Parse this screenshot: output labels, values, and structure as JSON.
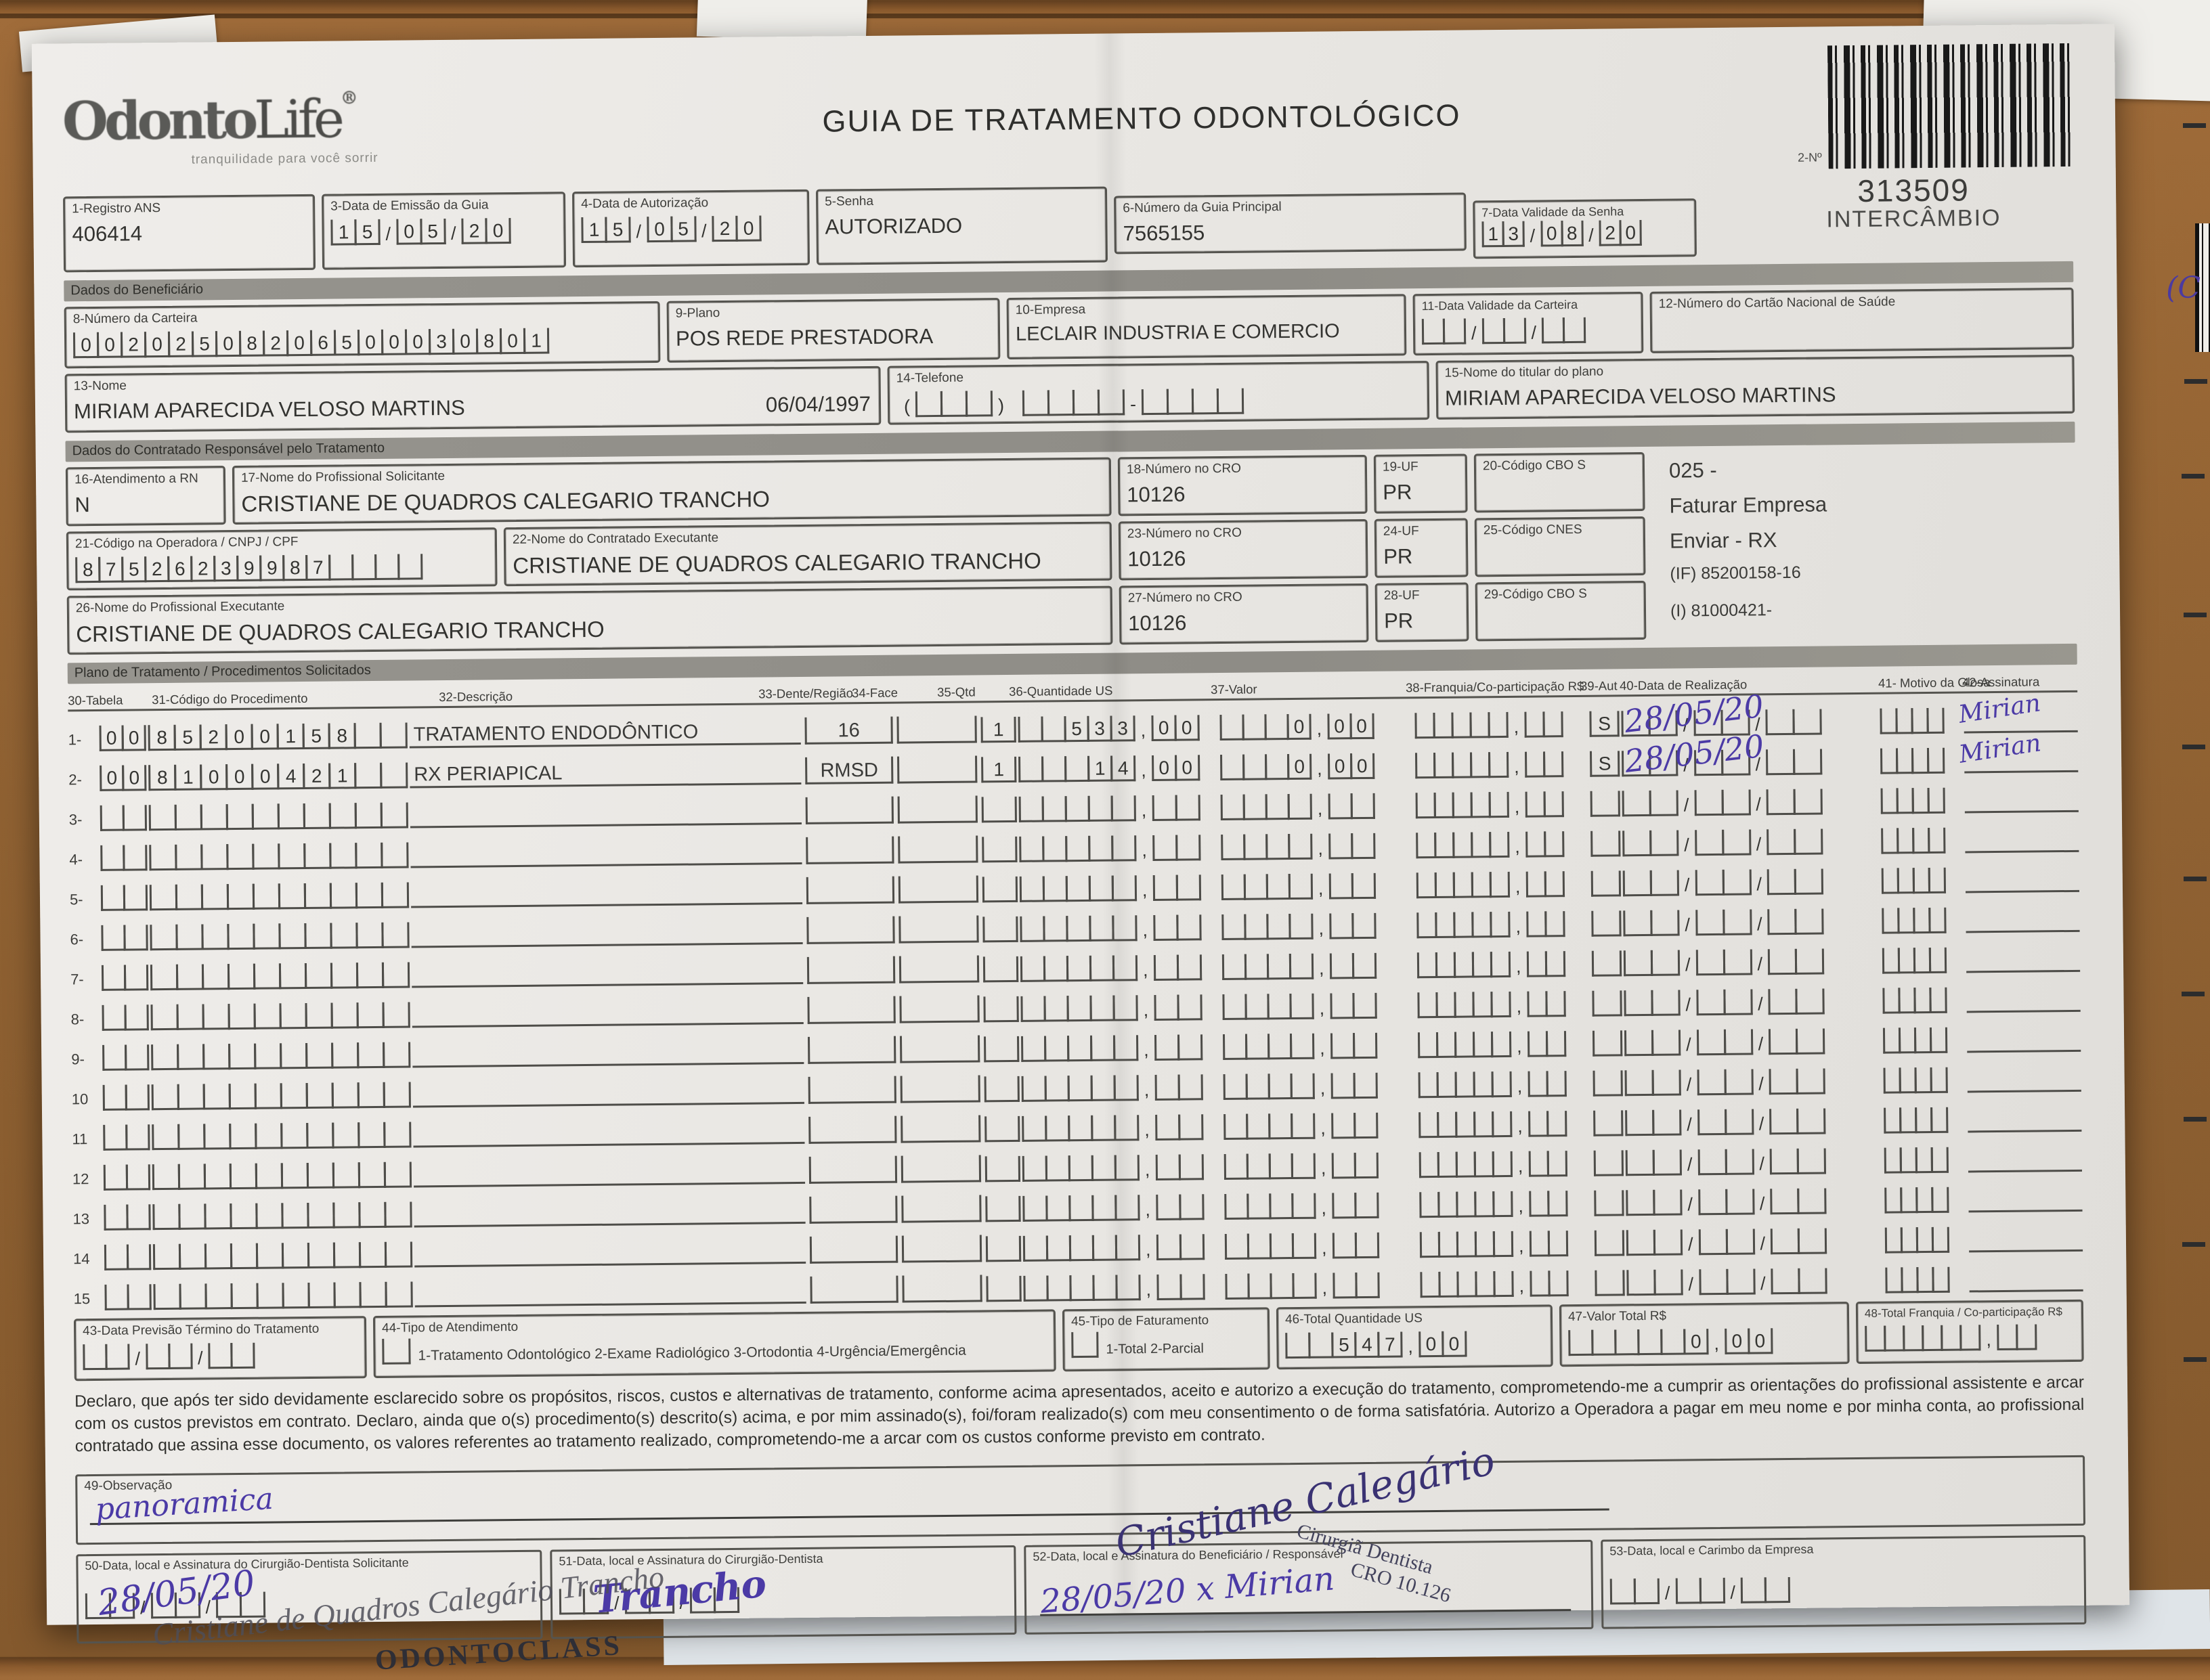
{
  "logo": {
    "text": "Odonto",
    "life": "Life",
    "reg": "®",
    "tagline": "tranquilidade para você sorrir"
  },
  "header": {
    "title": "GUIA DE TRATAMENTO ODONTOLÓGICO",
    "barcode_no_label": "2-Nº",
    "barcode_number": "313509",
    "barcode_caption": "INTERCÂMBIO"
  },
  "sections": {
    "beneficiario": "Dados do Beneficiário",
    "contratado": "Dados do Contratado Responsável pelo Tratamento",
    "plano": "Plano de Tratamento / Procedimentos Solicitados"
  },
  "fields": {
    "f1": {
      "label": "1-Registro ANS",
      "value": "406414"
    },
    "f3": {
      "label": "3-Data de Emissão da Guia",
      "value": "150520"
    },
    "f4": {
      "label": "4-Data de Autorização",
      "value": "150520"
    },
    "f5": {
      "label": "5-Senha",
      "value": "AUTORIZADO"
    },
    "f6": {
      "label": "6-Número da Guia Principal",
      "value": "7565155"
    },
    "f7": {
      "label": "7-Data Validade da Senha",
      "value": "130820"
    },
    "f8": {
      "label": "8-Número da Carteira",
      "value": "00202508206500030801"
    },
    "f9": {
      "label": "9-Plano",
      "value": "POS REDE PRESTADORA"
    },
    "f10": {
      "label": "10-Empresa",
      "value": "LECLAIR INDUSTRIA E COMERCIO"
    },
    "f11": {
      "label": "11-Data Validade da Carteira",
      "value": ""
    },
    "f12": {
      "label": "12-Número do Cartão Nacional de Saúde",
      "value": ""
    },
    "f13": {
      "label": "13-Nome",
      "value": "MIRIAM APARECIDA VELOSO MARTINS",
      "birthdate": "06/04/1997"
    },
    "f14": {
      "label": "14-Telefone",
      "value": ""
    },
    "f15": {
      "label": "15-Nome do titular do plano",
      "value": "MIRIAM APARECIDA VELOSO MARTINS"
    },
    "f16": {
      "label": "16-Atendimento a RN",
      "value": "N"
    },
    "f17": {
      "label": "17-Nome do Profissional Solicitante",
      "value": "CRISTIANE DE QUADROS CALEGARIO TRANCHO"
    },
    "f18": {
      "label": "18-Número no CRO",
      "value": "10126"
    },
    "f19": {
      "label": "19-UF",
      "value": "PR"
    },
    "f20": {
      "label": "20-Código CBO S",
      "value": ""
    },
    "f21": {
      "label": "21-Código na Operadora / CNPJ / CPF",
      "value": "87526239987"
    },
    "f22": {
      "label": "22-Nome do Contratado Executante",
      "value": "CRISTIANE DE QUADROS CALEGARIO TRANCHO"
    },
    "f23": {
      "label": "23-Número no CRO",
      "value": "10126"
    },
    "f24": {
      "label": "24-UF",
      "value": "PR"
    },
    "f25": {
      "label": "25-Código CNES",
      "value": ""
    },
    "f26": {
      "label": "26-Nome do Profissional Executante",
      "value": "CRISTIANE DE QUADROS CALEGARIO TRANCHO"
    },
    "f27": {
      "label": "27-Número no CRO",
      "value": "10126"
    },
    "f28": {
      "label": "28-UF",
      "value": "PR"
    },
    "f29": {
      "label": "29-Código CBO S",
      "value": ""
    },
    "f43": {
      "label": "43-Data Previsão Término do Tratamento",
      "value": ""
    },
    "f44": {
      "label": "44-Tipo de Atendimento",
      "value": "",
      "options": "1-Tratamento Odontológico  2-Exame Radiológico  3-Ortodontia  4-Urgência/Emergência"
    },
    "f45": {
      "label": "45-Tipo de Faturamento",
      "value": "",
      "options": "1-Total  2-Parcial"
    },
    "f46": {
      "label": "46-Total Quantidade US",
      "value": "  54700"
    },
    "f47": {
      "label": "47-Valor Total R$",
      "value": "     000"
    },
    "f48": {
      "label": "48-Total Franquia / Co-participação R$",
      "value": ""
    },
    "f49": {
      "label": "49-Observação"
    },
    "f50": {
      "label": "50-Data, local e Assinatura do Cirurgião-Dentista Solicitante",
      "value": ""
    },
    "f51": {
      "label": "51-Data, local e Assinatura do Cirurgião-Dentista",
      "value": ""
    },
    "f52": {
      "label": "52-Data, local e Assinatura do Beneficiário / Responsável"
    },
    "f53": {
      "label": "53-Data, local e Carimbo da Empresa",
      "value": ""
    }
  },
  "info_lines": {
    "l1": "025 -",
    "l2": "Faturar Empresa",
    "l3": "Enviar - RX",
    "l4": "(IF) 85200158-16",
    "l5": "(I) 81000421-"
  },
  "table": {
    "headers": {
      "h30": "30-Tabela",
      "h31": "31-Código do Procedimento",
      "h32": "32-Descrição",
      "h33": "33-Dente/Região",
      "h34": "34-Face",
      "h35": "35-Qtd",
      "h36": "36-Quantidade US",
      "h37": "37-Valor",
      "h38": "38-Franquia/Co-participação R$",
      "h39": "39-Aut",
      "h40": "40-Data de Realização",
      "h41": "41- Motivo da Glosa",
      "h42": "42-Assinatura"
    },
    "rows": [
      {
        "num": "1-",
        "tabela": "00",
        "codigo": "85200158",
        "desc": "TRATAMENTO ENDODÔNTICO",
        "dente": "16",
        "face": "",
        "qtd": "1",
        "qty_us": "  53300",
        "valor": "   000",
        "franquia": "",
        "aut": "S",
        "data_hand": "28/05/20",
        "assin_hand": "Mirian"
      },
      {
        "num": "2-",
        "tabela": "00",
        "codigo": "81000421",
        "desc": "RX PERIAPICAL",
        "dente": "RMSD",
        "face": "",
        "qtd": "1",
        "qty_us": "   1400",
        "valor": "   000",
        "franquia": "",
        "aut": "S",
        "data_hand": "28/05/20",
        "assin_hand": "Mirian"
      },
      {
        "num": "3-",
        "tabela": "",
        "codigo": "",
        "desc": "",
        "dente": "",
        "face": "",
        "qtd": "",
        "qty_us": "",
        "valor": "",
        "franquia": "",
        "aut": "",
        "data_hand": "",
        "assin_hand": ""
      },
      {
        "num": "4-",
        "tabela": "",
        "codigo": "",
        "desc": "",
        "dente": "",
        "face": "",
        "qtd": "",
        "qty_us": "",
        "valor": "",
        "franquia": "",
        "aut": "",
        "data_hand": "",
        "assin_hand": ""
      },
      {
        "num": "5-",
        "tabela": "",
        "codigo": "",
        "desc": "",
        "dente": "",
        "face": "",
        "qtd": "",
        "qty_us": "",
        "valor": "",
        "franquia": "",
        "aut": "",
        "data_hand": "",
        "assin_hand": ""
      },
      {
        "num": "6-",
        "tabela": "",
        "codigo": "",
        "desc": "",
        "dente": "",
        "face": "",
        "qtd": "",
        "qty_us": "",
        "valor": "",
        "franquia": "",
        "aut": "",
        "data_hand": "",
        "assin_hand": ""
      },
      {
        "num": "7-",
        "tabela": "",
        "codigo": "",
        "desc": "",
        "dente": "",
        "face": "",
        "qtd": "",
        "qty_us": "",
        "valor": "",
        "franquia": "",
        "aut": "",
        "data_hand": "",
        "assin_hand": ""
      },
      {
        "num": "8-",
        "tabela": "",
        "codigo": "",
        "desc": "",
        "dente": "",
        "face": "",
        "qtd": "",
        "qty_us": "",
        "valor": "",
        "franquia": "",
        "aut": "",
        "data_hand": "",
        "assin_hand": ""
      },
      {
        "num": "9-",
        "tabela": "",
        "codigo": "",
        "desc": "",
        "dente": "",
        "face": "",
        "qtd": "",
        "qty_us": "",
        "valor": "",
        "franquia": "",
        "aut": "",
        "data_hand": "",
        "assin_hand": ""
      },
      {
        "num": "10",
        "tabela": "",
        "codigo": "",
        "desc": "",
        "dente": "",
        "face": "",
        "qtd": "",
        "qty_us": "",
        "valor": "",
        "franquia": "",
        "aut": "",
        "data_hand": "",
        "assin_hand": ""
      },
      {
        "num": "11",
        "tabela": "",
        "codigo": "",
        "desc": "",
        "dente": "",
        "face": "",
        "qtd": "",
        "qty_us": "",
        "valor": "",
        "franquia": "",
        "aut": "",
        "data_hand": "",
        "assin_hand": ""
      },
      {
        "num": "12",
        "tabela": "",
        "codigo": "",
        "desc": "",
        "dente": "",
        "face": "",
        "qtd": "",
        "qty_us": "",
        "valor": "",
        "franquia": "",
        "aut": "",
        "data_hand": "",
        "assin_hand": ""
      },
      {
        "num": "13",
        "tabela": "",
        "codigo": "",
        "desc": "",
        "dente": "",
        "face": "",
        "qtd": "",
        "qty_us": "",
        "valor": "",
        "franquia": "",
        "aut": "",
        "data_hand": "",
        "assin_hand": ""
      },
      {
        "num": "14",
        "tabela": "",
        "codigo": "",
        "desc": "",
        "dente": "",
        "face": "",
        "qtd": "",
        "qty_us": "",
        "valor": "",
        "franquia": "",
        "aut": "",
        "data_hand": "",
        "assin_hand": ""
      },
      {
        "num": "15",
        "tabela": "",
        "codigo": "",
        "desc": "",
        "dente": "",
        "face": "",
        "qtd": "",
        "qty_us": "",
        "valor": "",
        "franquia": "",
        "aut": "",
        "data_hand": "",
        "assin_hand": ""
      }
    ]
  },
  "declaration": "Declaro, que após ter sido devidamente esclarecido sobre os propósitos, riscos, custos e alternativas de tratamento, conforme acima apresentados, aceito e autorizo a execução do tratamento, comprometendo-me a cumprir as orientações do profissional assistente e arcar com os custos previstos em contrato. Declaro, ainda que o(s) procedimento(s) descrito(s) acima, e por mim assinado(s), foi/foram realizado(s) com meu consentimento o de forma satisfatória. Autorizo a Operadora a pagar em meu nome e por minha conta, ao profissional contratado que assina esse documento, os valores referentes ao tratamento realizado, comprometendo-me a arcar com os custos conforme previsto em contrato.",
  "handwriting": {
    "obs": "panoramica",
    "f50_date": "28/05/20",
    "f51_sign": "Trancho",
    "f52_text": "28/05/20  x Mirian",
    "big_signature": "Cristiane Calegário",
    "margin_mark": "(C"
  },
  "stamps": {
    "solicitante_name": "Cristiane de Quadros Calegário Trancho",
    "clinic": "ODONTOCLASS",
    "cro_line1": "Cirurgiã Dentista",
    "cro_line2": "CRO 10.126"
  }
}
